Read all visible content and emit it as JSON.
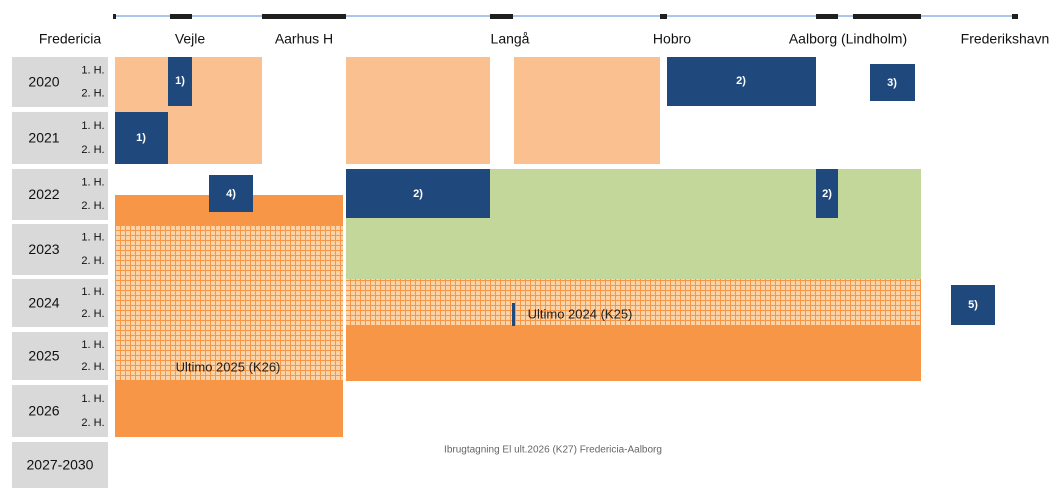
{
  "stations": [
    "Fredericia",
    "Vejle",
    "Aarhus H",
    "Langå",
    "Hobro",
    "Aalborg (Lindholm)",
    "Frederikshavn"
  ],
  "rows": [
    {
      "year": "2020",
      "halves": [
        "1. H.",
        "2. H."
      ]
    },
    {
      "year": "2021",
      "halves": [
        "1. H.",
        "2. H."
      ]
    },
    {
      "year": "2022",
      "halves": [
        "1. H.",
        "2. H."
      ]
    },
    {
      "year": "2023",
      "halves": [
        "1. H.",
        "2. H."
      ]
    },
    {
      "year": "2024",
      "halves": [
        "1. H.",
        "2. H."
      ]
    },
    {
      "year": "2025",
      "halves": [
        "1. H.",
        "2. H."
      ]
    },
    {
      "year": "2026",
      "halves": [
        "1. H.",
        "2. H."
      ]
    },
    {
      "year": "2027-2030",
      "halves": []
    }
  ],
  "notes": [
    "1)",
    "1)",
    "2)",
    "3)",
    "2)",
    "2)",
    "4)",
    "5)"
  ],
  "annotations": [
    "Ultimo 2024 (K25)",
    "Ultimo 2025 (K26)"
  ],
  "footer": "Ibrugtagning El  ult.2026 (K27) Fredericia-Aalborg"
}
